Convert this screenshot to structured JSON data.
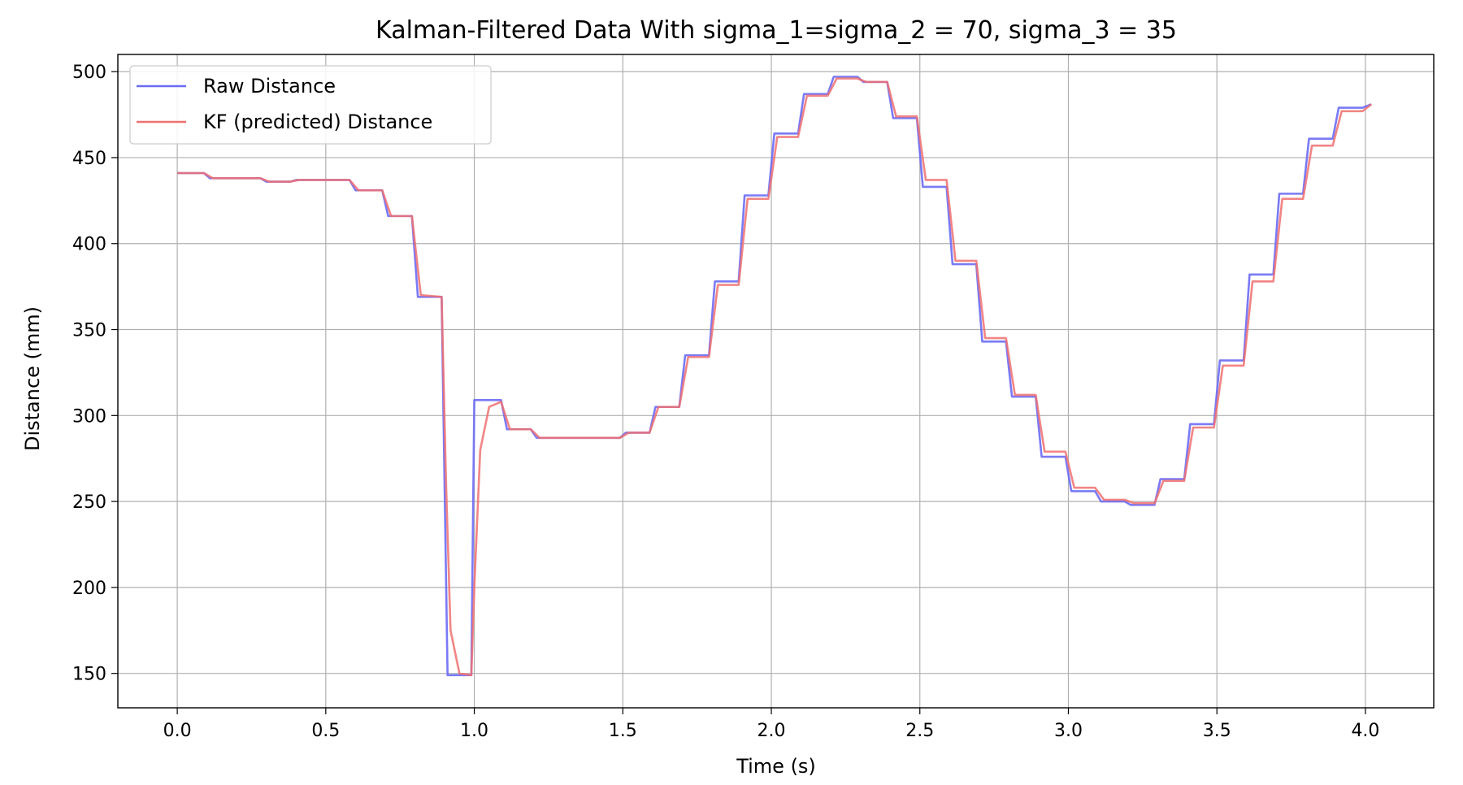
{
  "chart_data": {
    "type": "line",
    "title": "Kalman-Filtered Data With sigma_1=sigma_2 = 70, sigma_3 = 35",
    "xlabel": "Time (s)",
    "ylabel": "Distance (mm)",
    "xlim": [
      -0.2,
      4.23
    ],
    "ylim": [
      130,
      510
    ],
    "xticks": [
      0.0,
      0.5,
      1.0,
      1.5,
      2.0,
      2.5,
      3.0,
      3.5,
      4.0
    ],
    "xtick_labels": [
      "0.0",
      "0.5",
      "1.0",
      "1.5",
      "2.0",
      "2.5",
      "3.0",
      "3.5",
      "4.0"
    ],
    "yticks": [
      150,
      200,
      250,
      300,
      350,
      400,
      450,
      500
    ],
    "ytick_labels": [
      "150",
      "200",
      "250",
      "300",
      "350",
      "400",
      "450",
      "500"
    ],
    "grid": true,
    "legend_position": "top-left",
    "series": [
      {
        "name": "Raw Distance",
        "color": "#6b6bf5",
        "x": [
          0.0,
          0.09,
          0.11,
          0.28,
          0.3,
          0.38,
          0.4,
          0.58,
          0.6,
          0.69,
          0.71,
          0.79,
          0.81,
          0.89,
          0.91,
          0.99,
          1.0,
          1.09,
          1.11,
          1.19,
          1.21,
          1.49,
          1.51,
          1.59,
          1.61,
          1.69,
          1.71,
          1.79,
          1.81,
          1.89,
          1.91,
          1.99,
          2.01,
          2.09,
          2.11,
          2.19,
          2.21,
          2.29,
          2.31,
          2.39,
          2.41,
          2.49,
          2.51,
          2.59,
          2.61,
          2.69,
          2.71,
          2.79,
          2.81,
          2.89,
          2.91,
          2.99,
          3.01,
          3.09,
          3.11,
          3.19,
          3.21,
          3.29,
          3.31,
          3.39,
          3.41,
          3.49,
          3.51,
          3.59,
          3.61,
          3.69,
          3.71,
          3.79,
          3.81,
          3.89,
          3.91,
          3.99,
          4.02
        ],
        "y": [
          441,
          441,
          438,
          438,
          436,
          436,
          437,
          437,
          431,
          431,
          416,
          416,
          369,
          369,
          149,
          149,
          309,
          309,
          292,
          292,
          287,
          287,
          290,
          290,
          305,
          305,
          335,
          335,
          378,
          378,
          428,
          428,
          464,
          464,
          487,
          487,
          497,
          497,
          494,
          494,
          473,
          473,
          433,
          433,
          388,
          388,
          343,
          343,
          311,
          311,
          276,
          276,
          256,
          256,
          250,
          250,
          248,
          248,
          263,
          263,
          295,
          295,
          332,
          332,
          382,
          382,
          429,
          429,
          461,
          461,
          479,
          479,
          481
        ]
      },
      {
        "name": "KF (predicted) Distance",
        "color": "#f07070",
        "x": [
          0.0,
          0.09,
          0.12,
          0.28,
          0.31,
          0.38,
          0.41,
          0.58,
          0.61,
          0.69,
          0.72,
          0.79,
          0.82,
          0.89,
          0.905,
          0.92,
          0.95,
          0.99,
          1.0,
          1.02,
          1.05,
          1.09,
          1.12,
          1.19,
          1.22,
          1.49,
          1.52,
          1.59,
          1.62,
          1.69,
          1.72,
          1.79,
          1.82,
          1.89,
          1.92,
          1.99,
          2.02,
          2.09,
          2.12,
          2.19,
          2.22,
          2.29,
          2.32,
          2.39,
          2.42,
          2.49,
          2.52,
          2.59,
          2.62,
          2.69,
          2.72,
          2.79,
          2.82,
          2.89,
          2.92,
          2.99,
          3.02,
          3.09,
          3.12,
          3.19,
          3.22,
          3.29,
          3.32,
          3.39,
          3.42,
          3.49,
          3.52,
          3.59,
          3.62,
          3.69,
          3.72,
          3.79,
          3.82,
          3.89,
          3.92,
          3.99,
          4.02
        ],
        "y": [
          441,
          441,
          438,
          438,
          436,
          436,
          437,
          437,
          431,
          431,
          416,
          416,
          370,
          369,
          260,
          175,
          150,
          149,
          200,
          280,
          305,
          308,
          292,
          292,
          287,
          287,
          290,
          290,
          305,
          305,
          334,
          334,
          376,
          376,
          426,
          426,
          462,
          462,
          486,
          486,
          496,
          496,
          494,
          494,
          474,
          474,
          437,
          437,
          390,
          390,
          345,
          345,
          312,
          312,
          279,
          279,
          258,
          258,
          251,
          251,
          249,
          249,
          262,
          262,
          293,
          293,
          329,
          329,
          378,
          378,
          426,
          426,
          457,
          457,
          477,
          477,
          481
        ]
      }
    ]
  }
}
